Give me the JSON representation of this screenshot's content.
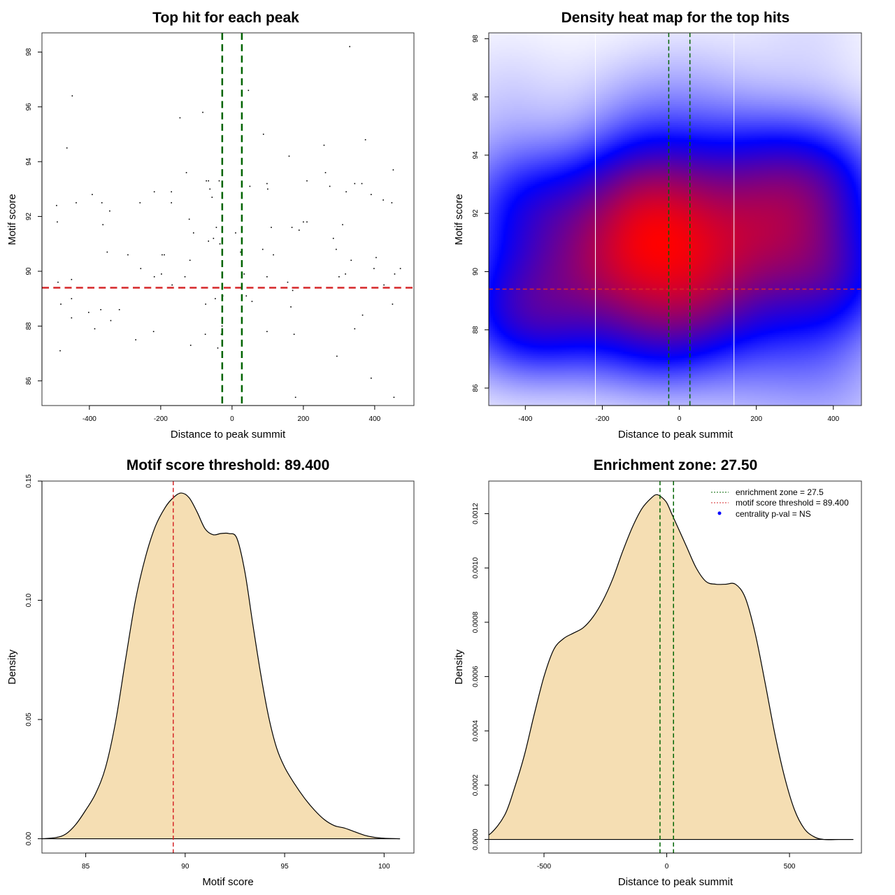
{
  "chart_data": [
    {
      "id": "scatter",
      "type": "scatter",
      "title": "Top hit for each peak",
      "xlabel": "Distance to peak summit",
      "ylabel": "Motif score",
      "xlim": [
        -533,
        510
      ],
      "ylim": [
        85.1,
        98.7
      ],
      "xticks": [
        -400,
        -200,
        0,
        200,
        400
      ],
      "yticks": [
        86,
        88,
        90,
        92,
        94,
        96,
        98
      ],
      "grid": false,
      "hlines": [
        {
          "y": 89.4,
          "color": "#d62728",
          "style": "dashed"
        }
      ],
      "vlines": [
        {
          "x": -27.5,
          "color": "#006400",
          "style": "dashed"
        },
        {
          "x": 27.5,
          "color": "#006400",
          "style": "dashed"
        }
      ],
      "points": [
        [
          -492,
          92.4
        ],
        [
          -490,
          91.8
        ],
        [
          -488,
          89.6
        ],
        [
          -480,
          88.8
        ],
        [
          -482,
          87.1
        ],
        [
          -463,
          94.5
        ],
        [
          -448,
          96.4
        ],
        [
          -450,
          89.7
        ],
        [
          -450,
          89.0
        ],
        [
          -450,
          88.3
        ],
        [
          -437,
          92.5
        ],
        [
          -402,
          88.5
        ],
        [
          -392,
          92.8
        ],
        [
          -385,
          87.9
        ],
        [
          -365,
          92.5
        ],
        [
          -362,
          91.7
        ],
        [
          -368,
          88.6
        ],
        [
          -350,
          90.7
        ],
        [
          -343,
          92.2
        ],
        [
          -340,
          88.2
        ],
        [
          -316,
          88.6
        ],
        [
          -292,
          90.6
        ],
        [
          -270,
          87.5
        ],
        [
          -258,
          92.5
        ],
        [
          -256,
          90.1
        ],
        [
          -218,
          92.9
        ],
        [
          -218,
          89.8
        ],
        [
          -220,
          87.8
        ],
        [
          -198,
          89.9
        ],
        [
          -196,
          90.6
        ],
        [
          -190,
          90.6
        ],
        [
          -170,
          92.5
        ],
        [
          -170,
          92.9
        ],
        [
          -168,
          89.5
        ],
        [
          -146,
          95.6
        ],
        [
          -132,
          89.8
        ],
        [
          -128,
          93.6
        ],
        [
          -120,
          91.9
        ],
        [
          -118,
          90.4
        ],
        [
          -116,
          87.3
        ],
        [
          -108,
          91.4
        ],
        [
          -82,
          95.8
        ],
        [
          -75,
          87.7
        ],
        [
          -74,
          88.8
        ],
        [
          -72,
          93.3
        ],
        [
          -66,
          91.1
        ],
        [
          -66,
          93.3
        ],
        [
          -62,
          93.0
        ],
        [
          -56,
          92.7
        ],
        [
          -52,
          91.2
        ],
        [
          -47,
          89.0
        ],
        [
          -44,
          91.6
        ],
        [
          -40,
          87.2
        ],
        [
          -36,
          93.3
        ],
        [
          -34,
          91.0
        ],
        [
          -30,
          87.7
        ],
        [
          -28,
          88.0
        ],
        [
          -26,
          89.1
        ],
        [
          10,
          91.4
        ],
        [
          24,
          90.7
        ],
        [
          34,
          89.9
        ],
        [
          40,
          89.1
        ],
        [
          46,
          96.6
        ],
        [
          50,
          93.1
        ],
        [
          56,
          88.9
        ],
        [
          86,
          90.8
        ],
        [
          88,
          95.0
        ],
        [
          98,
          93.2
        ],
        [
          100,
          93.0
        ],
        [
          98,
          89.8
        ],
        [
          98,
          87.8
        ],
        [
          110,
          91.6
        ],
        [
          116,
          90.6
        ],
        [
          156,
          89.6
        ],
        [
          160,
          94.2
        ],
        [
          165,
          88.7
        ],
        [
          168,
          91.6
        ],
        [
          170,
          89.3
        ],
        [
          174,
          87.7
        ],
        [
          178,
          85.4
        ],
        [
          188,
          91.5
        ],
        [
          200,
          91.8
        ],
        [
          210,
          91.8
        ],
        [
          210,
          93.3
        ],
        [
          258,
          94.6
        ],
        [
          262,
          93.6
        ],
        [
          274,
          93.1
        ],
        [
          284,
          91.2
        ],
        [
          292,
          90.8
        ],
        [
          294,
          86.9
        ],
        [
          300,
          89.8
        ],
        [
          310,
          91.7
        ],
        [
          318,
          89.9
        ],
        [
          320,
          92.9
        ],
        [
          330,
          98.2
        ],
        [
          334,
          90.4
        ],
        [
          344,
          87.9
        ],
        [
          344,
          93.2
        ],
        [
          364,
          93.2
        ],
        [
          366,
          88.4
        ],
        [
          374,
          94.8
        ],
        [
          390,
          92.8
        ],
        [
          390,
          86.1
        ],
        [
          398,
          90.1
        ],
        [
          404,
          90.5
        ],
        [
          424,
          92.6
        ],
        [
          426,
          89.5
        ],
        [
          448,
          92.5
        ],
        [
          450,
          88.8
        ],
        [
          452,
          93.7
        ],
        [
          454,
          85.4
        ],
        [
          456,
          89.9
        ],
        [
          472,
          90.1
        ]
      ]
    },
    {
      "id": "heatmap",
      "type": "heatmap",
      "title": "Density heat map for the top hits",
      "xlabel": "Distance to peak summit",
      "ylabel": "Motif score",
      "xlim": [
        -495,
        473
      ],
      "ylim": [
        85.4,
        98.2
      ],
      "xticks": [
        -400,
        -200,
        0,
        200,
        400
      ],
      "yticks": [
        86,
        88,
        90,
        92,
        94,
        96,
        98
      ],
      "color_scale": [
        "#ffffff",
        "#0000ff",
        "#ff0000"
      ],
      "density_peak": {
        "x": 0,
        "y": 90.0
      },
      "hlines": [
        {
          "y": 89.4,
          "color": "#d62728",
          "style": "dashed"
        }
      ],
      "vlines": [
        {
          "x": -27.5,
          "color": "#006400",
          "style": "dashed"
        },
        {
          "x": 27.5,
          "color": "#006400",
          "style": "dashed"
        }
      ],
      "white_vlines": [
        -218,
        142
      ]
    },
    {
      "id": "score-density",
      "type": "area",
      "title": "Motif score threshold: 89.400",
      "xlabel": "Motif score",
      "ylabel": "Density",
      "xlim": [
        82.8,
        101.5
      ],
      "ylim": [
        -0.006,
        0.15
      ],
      "xticks": [
        85,
        90,
        95,
        100
      ],
      "yticks": [
        0.0,
        0.05,
        0.1,
        0.15
      ],
      "ytick_labels": [
        "0.00",
        "0.05",
        "0.10",
        "0.15"
      ],
      "fill": "#f5deb3",
      "vlines": [
        {
          "x": 89.4,
          "color": "#d62728",
          "style": "dashed"
        }
      ],
      "x": [
        82.8,
        83.5,
        84.0,
        84.5,
        85.0,
        85.5,
        86.0,
        86.5,
        87.0,
        87.5,
        88.0,
        88.5,
        89.0,
        89.4,
        89.8,
        90.2,
        90.6,
        91.0,
        91.4,
        91.8,
        92.2,
        92.6,
        93.0,
        93.4,
        93.8,
        94.2,
        94.6,
        95.0,
        95.5,
        96.0,
        96.5,
        97.0,
        97.5,
        98.0,
        98.5,
        99.0,
        99.5,
        100.0,
        100.8
      ],
      "y": [
        0.0,
        0.0005,
        0.002,
        0.006,
        0.012,
        0.019,
        0.03,
        0.049,
        0.075,
        0.1,
        0.118,
        0.131,
        0.139,
        0.143,
        0.145,
        0.143,
        0.137,
        0.13,
        0.1275,
        0.128,
        0.128,
        0.126,
        0.112,
        0.09,
        0.069,
        0.051,
        0.038,
        0.03,
        0.023,
        0.017,
        0.012,
        0.008,
        0.0055,
        0.0045,
        0.003,
        0.0015,
        0.0006,
        0.0002,
        0.0
      ]
    },
    {
      "id": "distance-density",
      "type": "area",
      "title": "Enrichment zone: 27.50",
      "xlabel": "Distance to peak summit",
      "ylabel": "Density",
      "xlim": [
        -725,
        793
      ],
      "ylim": [
        -5e-05,
        0.00132
      ],
      "xticks": [
        -500,
        0,
        500
      ],
      "yticks": [
        0.0,
        0.0002,
        0.0004,
        0.0006,
        0.0008,
        0.001,
        0.0012
      ],
      "ytick_labels": [
        "0.0000",
        "0.0002",
        "0.0004",
        "0.0006",
        "0.0008",
        "0.0010",
        "0.0012"
      ],
      "fill": "#f5deb3",
      "vlines": [
        {
          "x": -27.5,
          "color": "#006400",
          "style": "dashed"
        },
        {
          "x": 27.5,
          "color": "#006400",
          "style": "dashed"
        }
      ],
      "x": [
        -780,
        -720,
        -660,
        -620,
        -580,
        -540,
        -500,
        -460,
        -420,
        -380,
        -340,
        -300,
        -260,
        -220,
        -180,
        -140,
        -100,
        -60,
        -40,
        -20,
        0,
        20,
        40,
        80,
        120,
        160,
        200,
        240,
        280,
        320,
        360,
        400,
        440,
        480,
        520,
        560,
        600,
        640,
        700,
        760
      ],
      "y": [
        0.0,
        2e-05,
        9e-05,
        0.00019,
        0.00031,
        0.00046,
        0.0006,
        0.0007,
        0.00074,
        0.00076,
        0.00078,
        0.00082,
        0.00088,
        0.00096,
        0.00106,
        0.00115,
        0.00122,
        0.00126,
        0.00127,
        0.00126,
        0.00124,
        0.0012,
        0.00116,
        0.00108,
        0.001,
        0.00095,
        0.00094,
        0.00094,
        0.00094,
        0.00089,
        0.00076,
        0.00058,
        0.00039,
        0.00023,
        0.00011,
        4e-05,
        1e-05,
        0.0,
        0.0,
        0.0
      ]
    }
  ],
  "legend": {
    "items": [
      {
        "label": "enrichment zone = 27.5",
        "color": "#006400",
        "symbol": "dotted-line"
      },
      {
        "label": "motif score threshold = 89.400",
        "color": "#d62728",
        "symbol": "dotted-line"
      },
      {
        "label": "centrality p-val = NS",
        "color": "#0000ff",
        "symbol": "dot"
      }
    ]
  }
}
